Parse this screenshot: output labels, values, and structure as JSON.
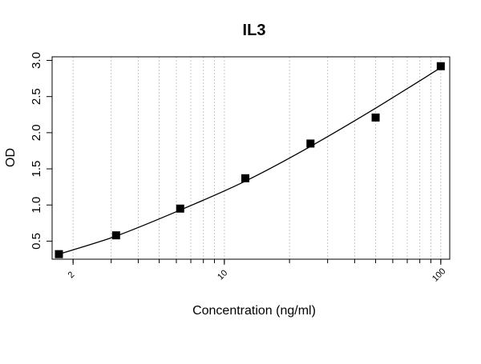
{
  "chart_data": {
    "type": "scatter",
    "title": "IL3",
    "xlabel": "Concentration (ng/ml)",
    "ylabel": "OD",
    "x_scale": "log",
    "xlim": [
      1.6,
      110
    ],
    "ylim": [
      0.25,
      3.05
    ],
    "grid": "vertical dotted lines at log minor ticks",
    "x_ticks": [
      {
        "value": 2,
        "label": "2"
      },
      {
        "value": 10,
        "label": "10"
      },
      {
        "value": 100,
        "label": "100"
      }
    ],
    "y_ticks": [
      {
        "value": 0.5,
        "label": "0.5"
      },
      {
        "value": 1.0,
        "label": "1.0"
      },
      {
        "value": 1.5,
        "label": "1.5"
      },
      {
        "value": 2.0,
        "label": "2.0"
      },
      {
        "value": 2.5,
        "label": "2.5"
      },
      {
        "value": 3.0,
        "label": "3.0"
      }
    ],
    "points": {
      "x": [
        1.72,
        3.16,
        6.25,
        12.5,
        25,
        50,
        100
      ],
      "y": [
        0.32,
        0.58,
        0.95,
        1.37,
        1.85,
        2.21,
        2.92
      ]
    },
    "fit_curve": {
      "x": [
        1.72,
        3.16,
        6.25,
        12.5,
        25,
        50,
        100
      ],
      "y": [
        0.32,
        0.57,
        0.93,
        1.33,
        1.81,
        2.34,
        2.9
      ]
    }
  }
}
